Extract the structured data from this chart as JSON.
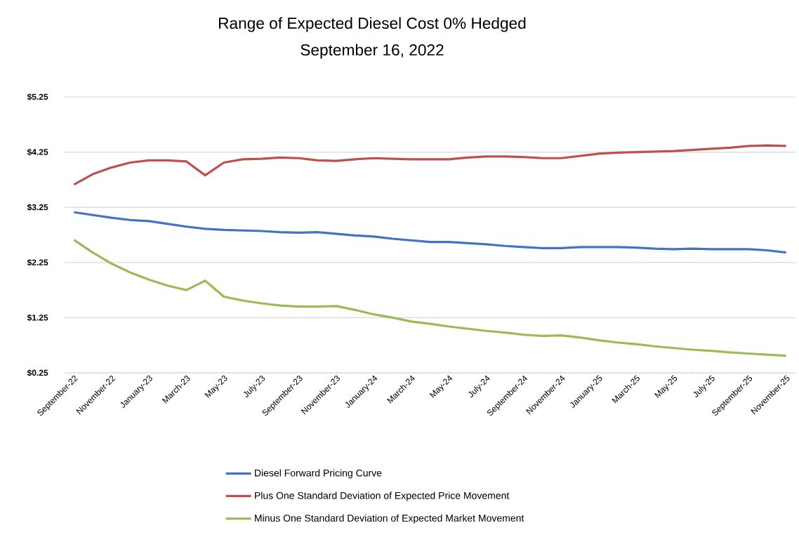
{
  "chart_data": {
    "type": "line",
    "title": "Range of Expected Diesel Cost 0% Hedged",
    "subtitle": "September 16, 2022",
    "categories": [
      "September-22",
      null,
      "November-22",
      null,
      "January-23",
      null,
      "March-23",
      null,
      "May-23",
      null,
      "July-23",
      null,
      "September-23",
      null,
      "November-23",
      null,
      "January-24",
      null,
      "March-24",
      null,
      "May-24",
      null,
      "July-24",
      null,
      "September-24",
      null,
      "November-24",
      null,
      "January-25",
      null,
      "March-25",
      null,
      "May-25",
      null,
      "July-25",
      null,
      "September-25",
      null,
      "November-25"
    ],
    "series": [
      {
        "name": "Diesel Forward Pricing Curve",
        "color": "#4472c4",
        "values": [
          3.16,
          3.11,
          3.06,
          3.02,
          3.0,
          2.95,
          2.9,
          2.86,
          2.84,
          2.83,
          2.82,
          2.8,
          2.79,
          2.8,
          2.77,
          2.74,
          2.72,
          2.68,
          2.65,
          2.62,
          2.62,
          2.6,
          2.58,
          2.55,
          2.53,
          2.51,
          2.51,
          2.53,
          2.53,
          2.53,
          2.52,
          2.5,
          2.49,
          2.5,
          2.49,
          2.49,
          2.49,
          2.47,
          2.43
        ]
      },
      {
        "name": "Plus One Standard Deviation of Expected Price Movement",
        "color": "#c0504d",
        "values": [
          3.66,
          3.85,
          3.97,
          4.06,
          4.1,
          4.1,
          4.08,
          3.83,
          4.06,
          4.12,
          4.13,
          4.15,
          4.14,
          4.1,
          4.09,
          4.12,
          4.14,
          4.13,
          4.12,
          4.12,
          4.12,
          4.15,
          4.17,
          4.17,
          4.16,
          4.14,
          4.14,
          4.18,
          4.22,
          4.24,
          4.25,
          4.26,
          4.27,
          4.29,
          4.31,
          4.33,
          4.36,
          4.37,
          4.36
        ]
      },
      {
        "name": "Minus One Standard Deviation of Expected Market Movement",
        "color": "#9bbb59",
        "values": [
          2.66,
          2.43,
          2.23,
          2.07,
          1.94,
          1.83,
          1.75,
          1.92,
          1.63,
          1.56,
          1.51,
          1.47,
          1.45,
          1.45,
          1.46,
          1.39,
          1.31,
          1.25,
          1.18,
          1.14,
          1.09,
          1.05,
          1.01,
          0.98,
          0.94,
          0.92,
          0.93,
          0.89,
          0.84,
          0.8,
          0.77,
          0.73,
          0.7,
          0.67,
          0.65,
          0.62,
          0.6,
          0.58,
          0.56
        ]
      }
    ],
    "ylim": [
      0.25,
      5.25
    ],
    "yticks": [
      {
        "value": 0.25,
        "label": "$0.25"
      },
      {
        "value": 1.25,
        "label": "$1.25"
      },
      {
        "value": 2.25,
        "label": "$2.25"
      },
      {
        "value": 3.25,
        "label": "$3.25"
      },
      {
        "value": 4.25,
        "label": "$4.25"
      },
      {
        "value": 5.25,
        "label": "$5.25"
      }
    ],
    "grid": "y",
    "legend": "bottom",
    "marker": "none",
    "line_style": "solid"
  }
}
